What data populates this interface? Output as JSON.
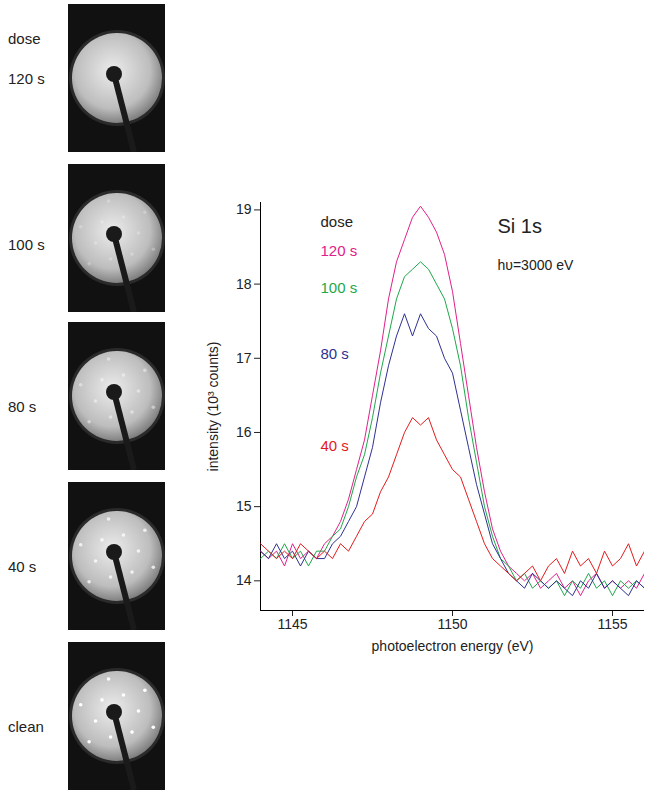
{
  "chart_data": {
    "type": "line",
    "title": "Si 1s",
    "subtitle": "hυ=3000 eV",
    "x_label": "photoelectron energy (eV)",
    "y_label": "intensity (10³ counts)",
    "legend_title": "dose",
    "legend": "upper left",
    "grid": false,
    "xlim": [
      1144,
      1156
    ],
    "xticks": [
      1145,
      1150,
      1155
    ],
    "ylim": [
      13.6,
      19.1
    ],
    "yticks": [
      14,
      15,
      16,
      17,
      18,
      19
    ],
    "x": [
      1144,
      1144.25,
      1144.5,
      1144.75,
      1145,
      1145.25,
      1145.5,
      1145.75,
      1146,
      1146.25,
      1146.5,
      1146.75,
      1147,
      1147.25,
      1147.5,
      1147.75,
      1148,
      1148.25,
      1148.5,
      1148.75,
      1149,
      1149.25,
      1149.5,
      1149.75,
      1150,
      1150.25,
      1150.5,
      1150.75,
      1151,
      1151.25,
      1151.5,
      1151.75,
      1152,
      1152.25,
      1152.5,
      1152.75,
      1153,
      1153.25,
      1153.5,
      1153.75,
      1154,
      1154.25,
      1154.5,
      1154.75,
      1155,
      1155.25,
      1155.5,
      1155.75,
      1156
    ],
    "series": [
      {
        "name": "120 s",
        "color": "#e0208a",
        "values": [
          14.4,
          14.3,
          14.4,
          14.2,
          14.5,
          14.3,
          14.4,
          14.3,
          14.5,
          14.6,
          14.8,
          15.1,
          15.5,
          15.9,
          16.5,
          17.1,
          17.8,
          18.3,
          18.6,
          18.9,
          19.05,
          18.9,
          18.7,
          18.4,
          17.9,
          17.2,
          16.5,
          15.8,
          15.2,
          14.7,
          14.4,
          14.2,
          14.1,
          14.0,
          14.1,
          13.9,
          14.0,
          14.1,
          13.9,
          14.0,
          13.8,
          14.0,
          14.1,
          13.9,
          14.0,
          13.9,
          14.0,
          13.9,
          14.1
        ]
      },
      {
        "name": "100 s",
        "color": "#1ea84a",
        "values": [
          14.3,
          14.4,
          14.3,
          14.5,
          14.3,
          14.4,
          14.2,
          14.4,
          14.4,
          14.6,
          14.7,
          15.0,
          15.4,
          15.7,
          16.2,
          16.8,
          17.3,
          17.8,
          18.1,
          18.2,
          18.3,
          18.2,
          18.0,
          17.8,
          17.4,
          16.9,
          16.2,
          15.6,
          15.0,
          14.6,
          14.3,
          14.2,
          14.0,
          14.1,
          13.9,
          14.0,
          13.9,
          14.0,
          13.8,
          14.0,
          13.9,
          14.1,
          13.9,
          14.0,
          13.8,
          14.0,
          13.9,
          14.0,
          13.9
        ]
      },
      {
        "name": "80 s",
        "color": "#2e3192",
        "values": [
          14.4,
          14.3,
          14.5,
          14.3,
          14.4,
          14.2,
          14.4,
          14.3,
          14.3,
          14.5,
          14.6,
          14.8,
          15.0,
          15.4,
          15.8,
          16.4,
          16.9,
          17.3,
          17.6,
          17.3,
          17.6,
          17.4,
          17.3,
          17.0,
          16.8,
          16.3,
          15.8,
          15.3,
          14.9,
          14.5,
          14.3,
          14.1,
          14.0,
          13.9,
          14.1,
          14.0,
          13.9,
          14.0,
          13.9,
          13.8,
          14.0,
          13.9,
          14.1,
          13.9,
          14.0,
          13.9,
          13.8,
          14.0,
          13.9
        ]
      },
      {
        "name": "40 s",
        "color": "#e31a1c",
        "values": [
          14.5,
          14.4,
          14.3,
          14.4,
          14.3,
          14.5,
          14.4,
          14.3,
          14.4,
          14.3,
          14.5,
          14.4,
          14.6,
          14.8,
          14.9,
          15.2,
          15.4,
          15.7,
          16.0,
          16.2,
          16.1,
          16.2,
          15.9,
          15.7,
          15.5,
          15.4,
          15.1,
          14.8,
          14.5,
          14.3,
          14.2,
          14.1,
          14.0,
          14.1,
          14.2,
          14.0,
          14.2,
          14.3,
          14.1,
          14.4,
          14.2,
          14.3,
          14.1,
          14.4,
          14.2,
          14.3,
          14.5,
          14.2,
          14.4
        ]
      }
    ]
  },
  "leed_images": {
    "heading": "dose",
    "labels": [
      "120 s",
      "100 s",
      "80 s",
      "40 s",
      "clean"
    ]
  }
}
